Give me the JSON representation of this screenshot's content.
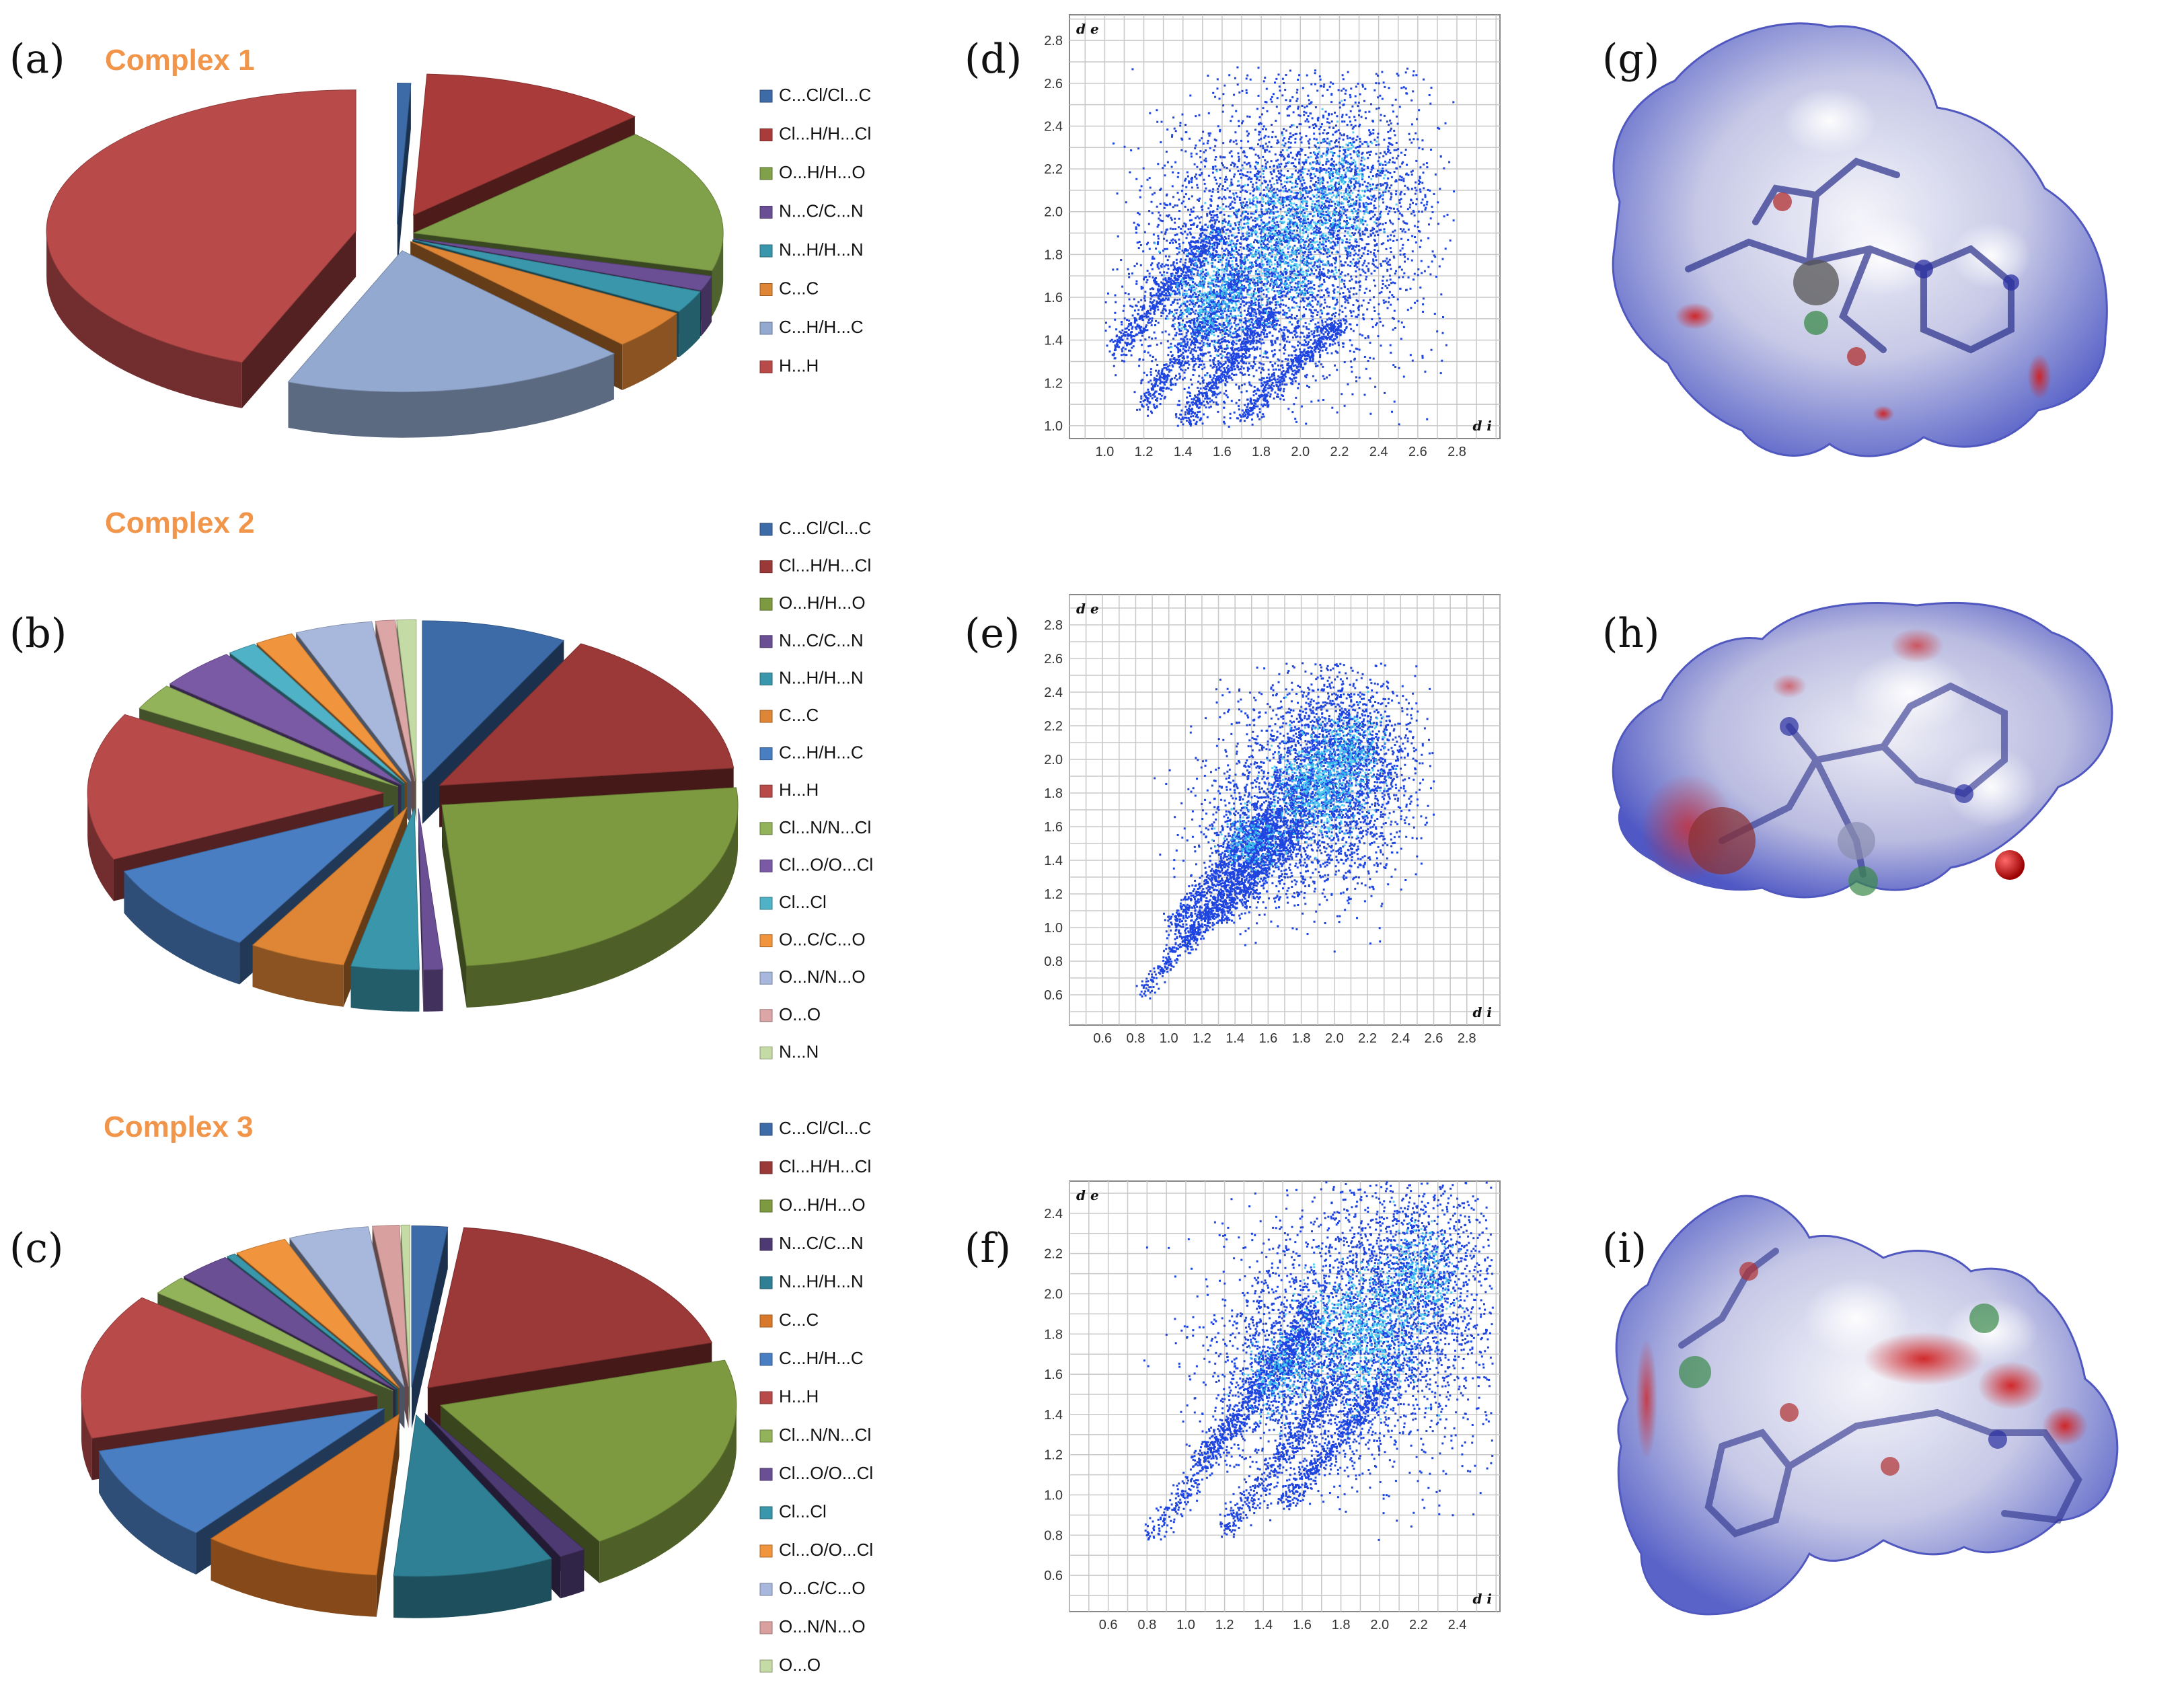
{
  "panels": {
    "a": "(a)",
    "b": "(b)",
    "c": "(c)",
    "d": "(d)",
    "e": "(e)",
    "f": "(f)",
    "g": "(g)",
    "h": "(h)",
    "i": "(i)"
  },
  "colors": {
    "title": "#f0954a",
    "scatter": "#1f45e0",
    "scatter_dense": "#39c6ee",
    "grid": "#c8c8c8"
  },
  "chart_data": [
    {
      "id": "complex1-pie",
      "type": "pie",
      "title": "Complex 1",
      "labels": [
        "C...Cl/Cl...C",
        "Cl...H/H...Cl",
        "O...H/H...O",
        "N...C/C...N",
        "N...H/H...N",
        "C...C",
        "C...H/H...C",
        "H...H"
      ],
      "colors": [
        "#3d6ba8",
        "#a93c3a",
        "#80a04a",
        "#6b4f94",
        "#3996ab",
        "#de8636",
        "#93a9d0",
        "#b84a4a"
      ],
      "values": [
        0.7,
        12.0,
        16.6,
        1.7,
        2.5,
        4.5,
        18.0,
        44.0
      ]
    },
    {
      "id": "complex2-pie",
      "type": "pie",
      "title": "Complex 2",
      "labels": [
        "C...Cl/Cl...C",
        "Cl...H/H...Cl",
        "O...H/H...O",
        "N...C/C...N",
        "N...H/H...N",
        "C...C",
        "C...H/H...C",
        "H...H",
        "Cl...N/N...Cl",
        "Cl...O/O...Cl",
        "Cl...Cl",
        "O...C/C...O",
        "O...N/N...O",
        "O...O",
        "N...N"
      ],
      "colors": [
        "#3d6ba8",
        "#9b3838",
        "#7d9a40",
        "#6b4f94",
        "#3996ab",
        "#de8636",
        "#4a7ec2",
        "#b84a4a",
        "#92b35a",
        "#7a5aa4",
        "#4fb2c6",
        "#f0953e",
        "#a8b8dc",
        "#dca6a6",
        "#c5dba5"
      ],
      "values": [
        7.5,
        14.5,
        24.0,
        1.0,
        3.5,
        5.0,
        9.0,
        14.0,
        2.5,
        4.0,
        1.5,
        2.0,
        4.0,
        1.0,
        1.0
      ]
    },
    {
      "id": "complex3-pie",
      "type": "pie",
      "title": "Complex 3",
      "labels": [
        "C...Cl/Cl...C",
        "Cl...H/H...Cl",
        "O...H/H...O",
        "N...C/C...N",
        "N...H/H...N",
        "C...C",
        "C...H/H...C",
        "H...H",
        "Cl...N/N...Cl",
        "Cl...O/O...Cl",
        "Cl...Cl",
        "Cl...O/O...Cl",
        "O...C/C...O",
        "O...N/N...O",
        "O...O"
      ],
      "colors": [
        "#3d6ba8",
        "#9b3838",
        "#7d9a40",
        "#4e3a72",
        "#2f7f95",
        "#d8782a",
        "#4a7ec2",
        "#b84a4a",
        "#92b35a",
        "#6b4f94",
        "#3996ab",
        "#f0953e",
        "#a8b8dc",
        "#d9a0a0",
        "#c5dba5"
      ],
      "values": [
        2.0,
        19.0,
        21.0,
        1.5,
        9.0,
        10.0,
        10.0,
        15.0,
        2.0,
        3.0,
        0.5,
        3.0,
        4.5,
        1.5,
        0.5
      ]
    },
    {
      "id": "fingerprint-d",
      "type": "scatter",
      "xlabel": "d i",
      "ylabel": "d e",
      "xticks": [
        "1.0",
        "1.2",
        "1.4",
        "1.6",
        "1.8",
        "2.0",
        "2.2",
        "2.4",
        "2.6",
        "2.8"
      ],
      "yticks": [
        "1.0",
        "1.2",
        "1.4",
        "1.6",
        "1.8",
        "2.0",
        "2.2",
        "2.4",
        "2.6",
        "2.8"
      ],
      "xlim": [
        0.82,
        3.02
      ],
      "ylim": [
        0.94,
        2.92
      ]
    },
    {
      "id": "fingerprint-e",
      "type": "scatter",
      "xlabel": "d i",
      "ylabel": "d e",
      "xticks": [
        "0.6",
        "0.8",
        "1.0",
        "1.2",
        "1.4",
        "1.6",
        "1.8",
        "2.0",
        "2.2",
        "2.4",
        "2.6",
        "2.8"
      ],
      "yticks": [
        "0.6",
        "0.8",
        "1.0",
        "1.2",
        "1.4",
        "1.6",
        "1.8",
        "2.0",
        "2.2",
        "2.4",
        "2.6",
        "2.8"
      ],
      "xlim": [
        0.4,
        3.0
      ],
      "ylim": [
        0.42,
        2.98
      ]
    },
    {
      "id": "fingerprint-f",
      "type": "scatter",
      "xlabel": "d i",
      "ylabel": "d e",
      "xticks": [
        "0.6",
        "0.8",
        "1.0",
        "1.2",
        "1.4",
        "1.6",
        "1.8",
        "2.0",
        "2.2",
        "2.4"
      ],
      "yticks": [
        "0.6",
        "0.8",
        "1.0",
        "1.2",
        "1.4",
        "1.6",
        "1.8",
        "2.0",
        "2.2",
        "2.4"
      ],
      "xlim": [
        0.4,
        2.62
      ],
      "ylim": [
        0.42,
        2.56
      ]
    }
  ]
}
